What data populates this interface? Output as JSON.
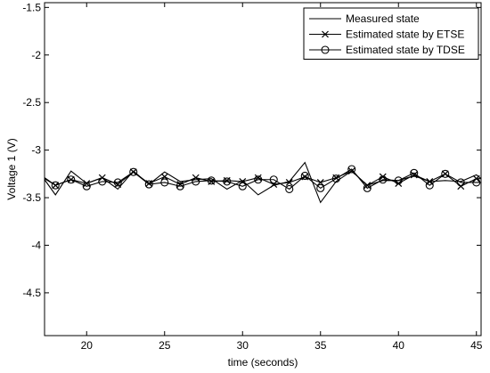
{
  "chart_data": {
    "type": "line",
    "xlabel": "time (seconds)",
    "ylabel": "Voltage 1 (V)",
    "xlim": [
      17.3,
      45.3
    ],
    "ylim": [
      -4.95,
      -1.45
    ],
    "xticks": [
      20,
      25,
      30,
      35,
      40,
      45
    ],
    "yticks": [
      -1.5,
      -2,
      -2.5,
      -3,
      -3.5,
      -4,
      -4.5
    ],
    "grid": false,
    "legend_position": "top-right",
    "series": [
      {
        "name": "Measured state",
        "marker": "none",
        "x": [
          17.3,
          18,
          19,
          20,
          21,
          22,
          23,
          24,
          25,
          26,
          27,
          28,
          29,
          30,
          31,
          32,
          33,
          34,
          35,
          36,
          37,
          38,
          39,
          40,
          41,
          42,
          43,
          44,
          45,
          45.3
        ],
        "y": [
          -3.31,
          -3.47,
          -3.22,
          -3.35,
          -3.29,
          -3.41,
          -3.22,
          -3.36,
          -3.23,
          -3.33,
          -3.31,
          -3.3,
          -3.41,
          -3.32,
          -3.47,
          -3.37,
          -3.33,
          -3.13,
          -3.55,
          -3.33,
          -3.22,
          -3.37,
          -3.32,
          -3.32,
          -3.27,
          -3.33,
          -3.32,
          -3.33,
          -3.26,
          -3.3
        ]
      },
      {
        "name": "Estimated state by ETSE",
        "marker": "x",
        "x": [
          17.3,
          18,
          19,
          20,
          21,
          22,
          23,
          24,
          25,
          26,
          27,
          28,
          29,
          30,
          31,
          32,
          33,
          34,
          35,
          36,
          37,
          38,
          39,
          40,
          41,
          42,
          43,
          44,
          45,
          45.3
        ],
        "y": [
          -3.3,
          -3.37,
          -3.31,
          -3.35,
          -3.29,
          -3.36,
          -3.23,
          -3.35,
          -3.28,
          -3.36,
          -3.29,
          -3.33,
          -3.32,
          -3.33,
          -3.29,
          -3.36,
          -3.34,
          -3.28,
          -3.34,
          -3.29,
          -3.22,
          -3.37,
          -3.28,
          -3.35,
          -3.26,
          -3.33,
          -3.25,
          -3.38,
          -3.3,
          -3.3
        ]
      },
      {
        "name": "Estimated state by TDSE",
        "marker": "circle",
        "x": [
          17.3,
          18,
          19,
          20,
          21,
          22,
          23,
          24,
          25,
          26,
          27,
          28,
          29,
          30,
          31,
          32,
          33,
          34,
          35,
          36,
          37,
          38,
          39,
          40,
          41,
          42,
          43,
          44,
          45,
          45.3
        ],
        "y": [
          -3.29,
          -3.37,
          -3.31,
          -3.38,
          -3.33,
          -3.34,
          -3.23,
          -3.36,
          -3.34,
          -3.38,
          -3.33,
          -3.32,
          -3.33,
          -3.38,
          -3.31,
          -3.31,
          -3.41,
          -3.27,
          -3.4,
          -3.3,
          -3.2,
          -3.4,
          -3.31,
          -3.32,
          -3.24,
          -3.37,
          -3.25,
          -3.34,
          -3.34,
          -3.34
        ]
      }
    ]
  }
}
